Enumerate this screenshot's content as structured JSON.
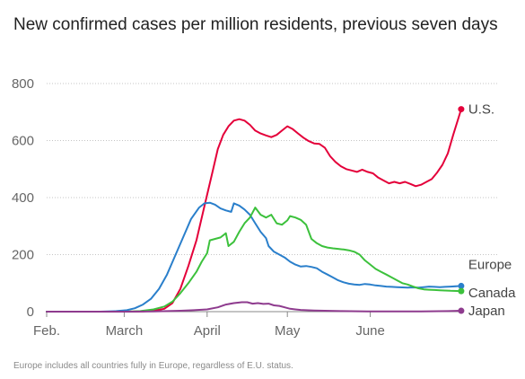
{
  "chart_data": {
    "type": "line",
    "title": "New confirmed cases per million residents, previous seven days",
    "note": "Europe includes all countries fully in Europe, regardless of E.U. status.",
    "xlabel": "",
    "ylabel": "",
    "ylim": [
      0,
      800
    ],
    "yticks": [
      "0",
      "200",
      "400",
      "600",
      "800"
    ],
    "xticks": [
      {
        "label": "Feb.",
        "day": 0
      },
      {
        "label": "March",
        "day": 29
      },
      {
        "label": "April",
        "day": 60
      },
      {
        "label": "May",
        "day": 90
      },
      {
        "label": "June",
        "day": 121
      }
    ],
    "xlim_days": [
      0,
      145
    ],
    "grid": "horizontal dotted",
    "legend": "labels at line ends (right)",
    "series": [
      {
        "name": "U.S.",
        "color": "#e4003a",
        "points": [
          [
            0,
            0
          ],
          [
            30,
            0
          ],
          [
            36,
            1
          ],
          [
            40,
            3
          ],
          [
            44,
            10
          ],
          [
            47,
            30
          ],
          [
            50,
            80
          ],
          [
            53,
            160
          ],
          [
            56,
            250
          ],
          [
            59,
            370
          ],
          [
            62,
            490
          ],
          [
            64,
            570
          ],
          [
            66,
            620
          ],
          [
            68,
            650
          ],
          [
            70,
            670
          ],
          [
            72,
            675
          ],
          [
            74,
            670
          ],
          [
            76,
            655
          ],
          [
            78,
            635
          ],
          [
            80,
            625
          ],
          [
            82,
            618
          ],
          [
            84,
            612
          ],
          [
            86,
            620
          ],
          [
            88,
            635
          ],
          [
            90,
            650
          ],
          [
            92,
            640
          ],
          [
            94,
            625
          ],
          [
            96,
            610
          ],
          [
            98,
            598
          ],
          [
            100,
            590
          ],
          [
            102,
            588
          ],
          [
            104,
            575
          ],
          [
            106,
            545
          ],
          [
            108,
            525
          ],
          [
            110,
            510
          ],
          [
            112,
            500
          ],
          [
            114,
            495
          ],
          [
            116,
            490
          ],
          [
            118,
            498
          ],
          [
            120,
            490
          ],
          [
            122,
            485
          ],
          [
            124,
            470
          ],
          [
            126,
            460
          ],
          [
            128,
            450
          ],
          [
            130,
            455
          ],
          [
            132,
            450
          ],
          [
            134,
            455
          ],
          [
            136,
            448
          ],
          [
            138,
            440
          ],
          [
            140,
            445
          ],
          [
            142,
            455
          ],
          [
            144,
            465
          ],
          [
            146,
            488
          ],
          [
            148,
            515
          ],
          [
            150,
            555
          ],
          [
            152,
            620
          ],
          [
            155,
            710
          ]
        ]
      },
      {
        "name": "Europe",
        "color": "#2a7fcb",
        "points": [
          [
            0,
            0
          ],
          [
            20,
            0
          ],
          [
            26,
            2
          ],
          [
            30,
            5
          ],
          [
            33,
            12
          ],
          [
            36,
            25
          ],
          [
            39,
            45
          ],
          [
            42,
            80
          ],
          [
            45,
            130
          ],
          [
            48,
            195
          ],
          [
            51,
            260
          ],
          [
            54,
            325
          ],
          [
            57,
            365
          ],
          [
            59,
            380
          ],
          [
            61,
            382
          ],
          [
            63,
            375
          ],
          [
            65,
            362
          ],
          [
            67,
            355
          ],
          [
            69,
            350
          ],
          [
            70,
            380
          ],
          [
            72,
            372
          ],
          [
            74,
            358
          ],
          [
            76,
            340
          ],
          [
            78,
            310
          ],
          [
            80,
            280
          ],
          [
            82,
            258
          ],
          [
            83,
            230
          ],
          [
            85,
            210
          ],
          [
            87,
            200
          ],
          [
            89,
            190
          ],
          [
            91,
            175
          ],
          [
            93,
            165
          ],
          [
            95,
            158
          ],
          [
            97,
            160
          ],
          [
            99,
            157
          ],
          [
            101,
            152
          ],
          [
            103,
            140
          ],
          [
            105,
            130
          ],
          [
            107,
            120
          ],
          [
            109,
            110
          ],
          [
            111,
            103
          ],
          [
            113,
            98
          ],
          [
            115,
            95
          ],
          [
            117,
            94
          ],
          [
            119,
            97
          ],
          [
            121,
            95
          ],
          [
            123,
            92
          ],
          [
            125,
            90
          ],
          [
            127,
            88
          ],
          [
            129,
            87
          ],
          [
            131,
            86
          ],
          [
            133,
            85
          ],
          [
            135,
            84
          ],
          [
            137,
            85
          ],
          [
            139,
            84
          ],
          [
            141,
            86
          ],
          [
            143,
            88
          ],
          [
            145,
            87
          ],
          [
            147,
            86
          ],
          [
            149,
            87
          ],
          [
            151,
            88
          ],
          [
            155,
            90
          ]
        ]
      },
      {
        "name": "Canada",
        "color": "#3cc13c",
        "points": [
          [
            0,
            0
          ],
          [
            30,
            0
          ],
          [
            35,
            2
          ],
          [
            40,
            8
          ],
          [
            44,
            18
          ],
          [
            47,
            35
          ],
          [
            50,
            65
          ],
          [
            53,
            100
          ],
          [
            56,
            140
          ],
          [
            58,
            175
          ],
          [
            60,
            205
          ],
          [
            61,
            250
          ],
          [
            63,
            255
          ],
          [
            65,
            260
          ],
          [
            67,
            275
          ],
          [
            68,
            230
          ],
          [
            70,
            245
          ],
          [
            72,
            280
          ],
          [
            74,
            310
          ],
          [
            76,
            330
          ],
          [
            78,
            365
          ],
          [
            80,
            340
          ],
          [
            82,
            330
          ],
          [
            84,
            340
          ],
          [
            86,
            310
          ],
          [
            88,
            305
          ],
          [
            90,
            320
          ],
          [
            91,
            335
          ],
          [
            93,
            330
          ],
          [
            95,
            322
          ],
          [
            97,
            305
          ],
          [
            99,
            255
          ],
          [
            101,
            240
          ],
          [
            103,
            230
          ],
          [
            105,
            225
          ],
          [
            107,
            222
          ],
          [
            109,
            220
          ],
          [
            111,
            218
          ],
          [
            113,
            215
          ],
          [
            115,
            210
          ],
          [
            117,
            200
          ],
          [
            119,
            180
          ],
          [
            121,
            165
          ],
          [
            123,
            150
          ],
          [
            125,
            140
          ],
          [
            127,
            130
          ],
          [
            129,
            120
          ],
          [
            131,
            110
          ],
          [
            133,
            100
          ],
          [
            135,
            95
          ],
          [
            137,
            88
          ],
          [
            139,
            82
          ],
          [
            141,
            78
          ],
          [
            143,
            77
          ],
          [
            145,
            76
          ],
          [
            147,
            75
          ],
          [
            149,
            74
          ],
          [
            151,
            73
          ],
          [
            155,
            72
          ]
        ]
      },
      {
        "name": "Japan",
        "color": "#8e3b8e",
        "points": [
          [
            0,
            0
          ],
          [
            30,
            0
          ],
          [
            40,
            1
          ],
          [
            50,
            3
          ],
          [
            55,
            5
          ],
          [
            60,
            8
          ],
          [
            64,
            15
          ],
          [
            67,
            25
          ],
          [
            70,
            30
          ],
          [
            73,
            33
          ],
          [
            75,
            33
          ],
          [
            77,
            28
          ],
          [
            79,
            30
          ],
          [
            81,
            27
          ],
          [
            83,
            28
          ],
          [
            85,
            22
          ],
          [
            87,
            20
          ],
          [
            89,
            15
          ],
          [
            91,
            10
          ],
          [
            93,
            8
          ],
          [
            95,
            6
          ],
          [
            100,
            4
          ],
          [
            110,
            2
          ],
          [
            120,
            1
          ],
          [
            130,
            1
          ],
          [
            140,
            1
          ],
          [
            150,
            2
          ],
          [
            155,
            3
          ]
        ]
      }
    ]
  }
}
